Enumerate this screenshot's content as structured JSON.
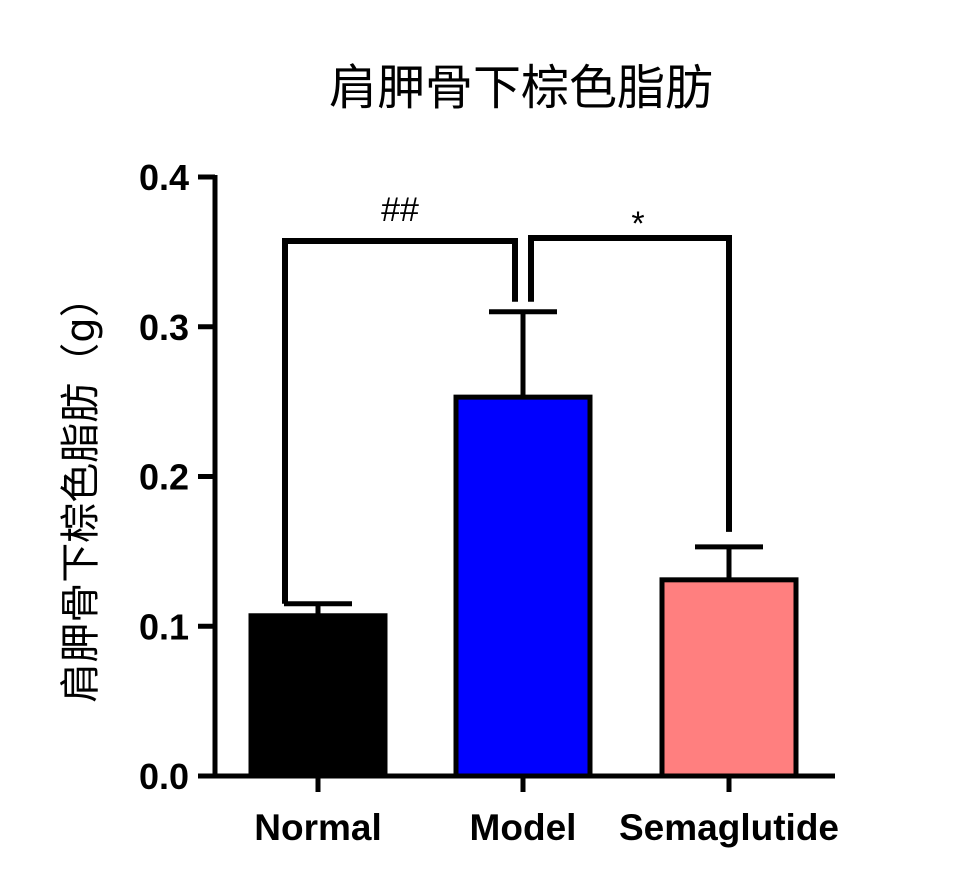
{
  "chart_data": {
    "type": "bar",
    "title": "肩胛骨下棕色脂肪",
    "xlabel": "",
    "ylabel": "肩胛骨下棕色脂肪（g）",
    "ylim": [
      0,
      0.4
    ],
    "yticks": [
      "0.0",
      "0.1",
      "0.2",
      "0.3",
      "0.4"
    ],
    "categories": [
      "Normal",
      "Model",
      "Semaglutide"
    ],
    "values": [
      0.107,
      0.253,
      0.131
    ],
    "errors": [
      0.008,
      0.057,
      0.022
    ],
    "colors": [
      "#000000",
      "#0000ff",
      "#ff7f7f"
    ],
    "annotations": [
      {
        "from": "Normal",
        "to": "Model",
        "label": "##"
      },
      {
        "from": "Model",
        "to": "Semaglutide",
        "label": "*"
      }
    ],
    "grid": false,
    "legend": "none"
  }
}
